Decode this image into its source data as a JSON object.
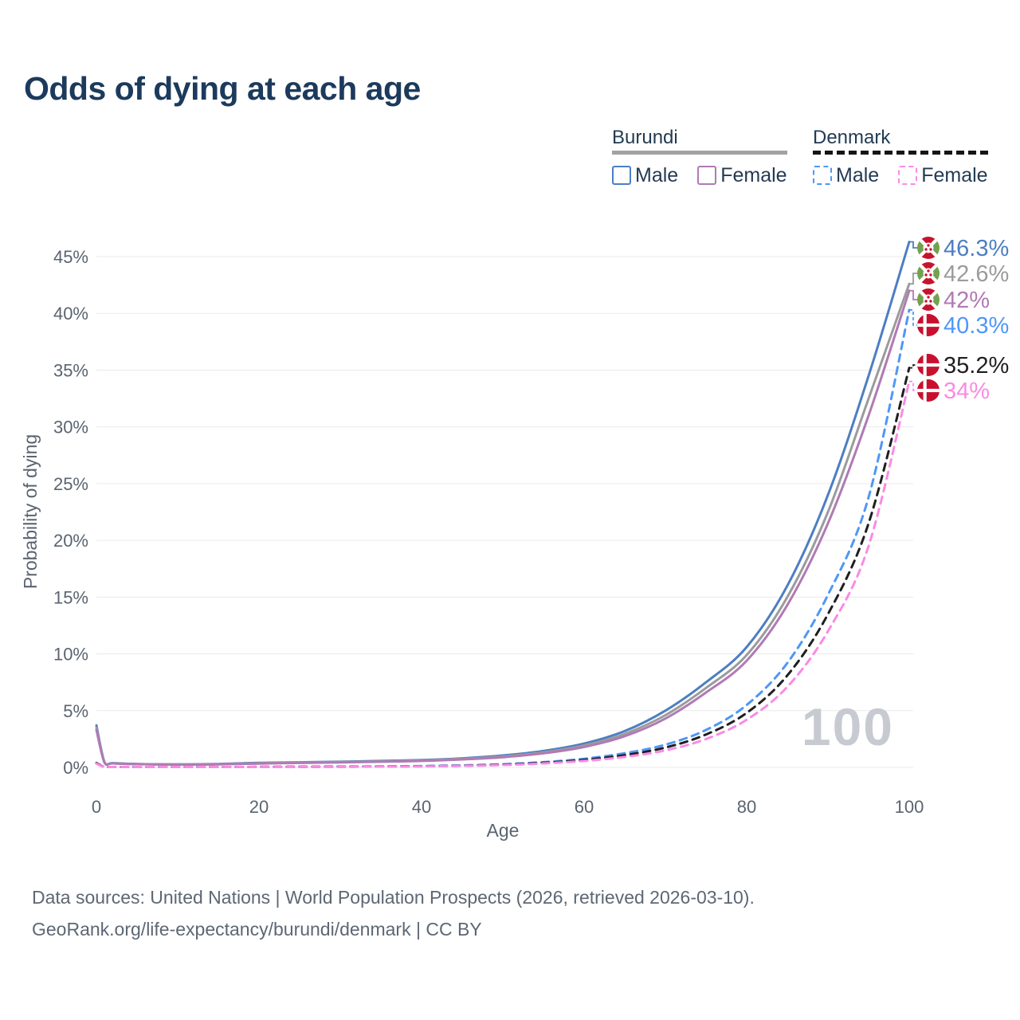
{
  "title": "Odds of dying at each age",
  "legend": {
    "groups": [
      {
        "name": "Burundi",
        "line_style": "solid",
        "underline_color": "#a2a2a2",
        "items": [
          {
            "label": "Male",
            "color": "#4d7ec2",
            "dashed": false
          },
          {
            "label": "Female",
            "color": "#b07ab5",
            "dashed": false
          }
        ]
      },
      {
        "name": "Denmark",
        "line_style": "dashed",
        "underline_color": "#151515",
        "items": [
          {
            "label": "Male",
            "color": "#4f97f7",
            "dashed": true
          },
          {
            "label": "Female",
            "color": "#fb8ae4",
            "dashed": true
          }
        ]
      }
    ]
  },
  "watermark": "100",
  "footer": {
    "line1": "Data sources: United Nations | World Population Prospects (2026, retrieved 2026-03-10).",
    "line2": "GeoRank.org/life-expectancy/burundi/denmark | CC BY"
  },
  "chart_data": {
    "type": "line",
    "title": "Odds of dying at each age",
    "xlabel": "Age",
    "ylabel": "Probability of dying",
    "xlim": [
      0,
      100
    ],
    "ylim_percent": [
      0,
      47
    ],
    "grid": "horizontal",
    "x_tick_labels": [
      "0",
      "20",
      "40",
      "60",
      "80",
      "100"
    ],
    "x_tick_values": [
      0,
      20,
      40,
      60,
      80,
      100
    ],
    "y_tick_labels": [
      "0%",
      "5%",
      "10%",
      "15%",
      "20%",
      "25%",
      "30%",
      "35%",
      "40%",
      "45%"
    ],
    "y_tick_values_percent": [
      0,
      5,
      10,
      15,
      20,
      25,
      30,
      35,
      40,
      45
    ],
    "ages": [
      0,
      1,
      2,
      5,
      10,
      15,
      20,
      25,
      30,
      35,
      40,
      45,
      50,
      55,
      60,
      65,
      70,
      75,
      80,
      85,
      90,
      95,
      100
    ],
    "series": [
      {
        "name": "Burundi Male",
        "country": "Burundi",
        "sex": "Male",
        "color": "#4d7ec2",
        "dashed": false,
        "flag": "burundi",
        "end_label": "46.3%",
        "values_percent": [
          3.7,
          0.45,
          0.38,
          0.3,
          0.27,
          0.3,
          0.4,
          0.45,
          0.5,
          0.57,
          0.65,
          0.8,
          1.05,
          1.45,
          2.1,
          3.2,
          5.0,
          7.5,
          10.6,
          16.0,
          24.0,
          34.5,
          46.3
        ]
      },
      {
        "name": "Burundi (both sexes)",
        "country": "Burundi",
        "sex": "Both",
        "color": "#9b9b9b",
        "dashed": false,
        "flag": "burundi",
        "end_label": "42.6%",
        "values_percent": [
          3.5,
          0.43,
          0.36,
          0.29,
          0.26,
          0.28,
          0.37,
          0.42,
          0.47,
          0.53,
          0.61,
          0.75,
          0.97,
          1.33,
          1.93,
          2.95,
          4.6,
          7.0,
          9.9,
          15.0,
          22.5,
          32.5,
          42.6
        ]
      },
      {
        "name": "Burundi Female",
        "country": "Burundi",
        "sex": "Female",
        "color": "#b07ab5",
        "dashed": false,
        "flag": "burundi",
        "end_label": "42%",
        "values_percent": [
          3.3,
          0.41,
          0.35,
          0.28,
          0.25,
          0.27,
          0.34,
          0.39,
          0.44,
          0.5,
          0.57,
          0.7,
          0.9,
          1.24,
          1.8,
          2.75,
          4.3,
          6.6,
          9.4,
          14.3,
          21.5,
          31.0,
          42.0
        ]
      },
      {
        "name": "Denmark Male",
        "country": "Denmark",
        "sex": "Male",
        "color": "#4f97f7",
        "dashed": true,
        "flag": "denmark",
        "end_label": "40.3%",
        "values_percent": [
          0.4,
          0.04,
          0.02,
          0.01,
          0.01,
          0.02,
          0.05,
          0.06,
          0.07,
          0.09,
          0.12,
          0.18,
          0.28,
          0.46,
          0.76,
          1.25,
          2.0,
          3.3,
          5.5,
          9.2,
          15.2,
          23.8,
          40.3
        ]
      },
      {
        "name": "Denmark (both sexes)",
        "country": "Denmark",
        "sex": "Both",
        "color": "#1f1f1f",
        "dashed": true,
        "flag": "denmark",
        "end_label": "35.2%",
        "values_percent": [
          0.37,
          0.03,
          0.02,
          0.01,
          0.01,
          0.02,
          0.04,
          0.05,
          0.06,
          0.08,
          0.1,
          0.15,
          0.24,
          0.4,
          0.66,
          1.08,
          1.75,
          2.9,
          4.8,
          8.1,
          13.5,
          21.5,
          35.2
        ]
      },
      {
        "name": "Denmark Female",
        "country": "Denmark",
        "sex": "Female",
        "color": "#fb8ae4",
        "dashed": true,
        "flag": "denmark",
        "end_label": "34%",
        "values_percent": [
          0.33,
          0.03,
          0.02,
          0.01,
          0.01,
          0.01,
          0.03,
          0.04,
          0.05,
          0.07,
          0.09,
          0.13,
          0.21,
          0.35,
          0.57,
          0.92,
          1.5,
          2.5,
          4.2,
          7.1,
          12.0,
          19.5,
          34.0
        ]
      }
    ]
  }
}
